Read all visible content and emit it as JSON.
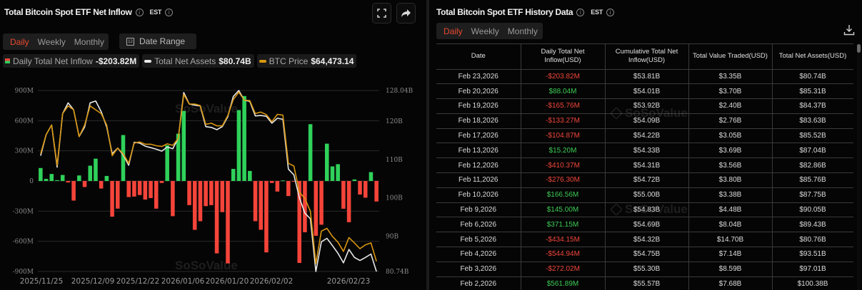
{
  "left_panel": {
    "title": "Total Bitcoin Spot ETF Net Inflow",
    "timezone": "EST",
    "period_tabs": [
      {
        "label": "Daily",
        "active": true
      },
      {
        "label": "Weekly",
        "active": false
      },
      {
        "label": "Monthly",
        "active": false
      }
    ],
    "date_range_label": "Date Range",
    "date_range_icon_day": "12",
    "legend": [
      {
        "label": "Daily Total Net Inflow",
        "value": "-$203.82M",
        "swatch": "inflow"
      },
      {
        "label": "Total Net Assets",
        "value": "$80.74B",
        "swatch": "#e8e8e8"
      },
      {
        "label": "BTC Price",
        "value": "$64,473.14",
        "swatch": "#d9960f"
      }
    ],
    "icons": {
      "fullscreen": "fullscreen-icon",
      "share": "share-icon"
    },
    "watermark": "SoSoValue"
  },
  "right_panel": {
    "title": "Total Bitcoin Spot ETF History Data",
    "timezone": "EST",
    "period_tabs": [
      {
        "label": "Daily",
        "active": true
      },
      {
        "label": "Weekly",
        "active": false
      },
      {
        "label": "Monthly",
        "active": false
      }
    ],
    "download_icon": "download-icon",
    "columns": [
      "Date",
      "Daily Total Net Inflow(USD)",
      "Cumulative Total Net Inflow(USD)",
      "Total Value Traded(USD)",
      "Total Net Assets(USD)"
    ],
    "rows": [
      {
        "date": "Feb 23,2026",
        "daily": "-$203.82M",
        "cumulative": "$53.81B",
        "traded": "$3.35B",
        "assets": "$80.74B"
      },
      {
        "date": "Feb 20,2026",
        "daily": "$88.04M",
        "cumulative": "$54.01B",
        "traded": "$3.70B",
        "assets": "$85.31B"
      },
      {
        "date": "Feb 19,2026",
        "daily": "-$165.76M",
        "cumulative": "$53.92B",
        "traded": "$2.40B",
        "assets": "$84.37B"
      },
      {
        "date": "Feb 18,2026",
        "daily": "-$133.27M",
        "cumulative": "$54.09B",
        "traded": "$2.76B",
        "assets": "$83.63B"
      },
      {
        "date": "Feb 17,2026",
        "daily": "-$104.87M",
        "cumulative": "$54.22B",
        "traded": "$3.05B",
        "assets": "$85.52B"
      },
      {
        "date": "Feb 13,2026",
        "daily": "$15.20M",
        "cumulative": "$54.33B",
        "traded": "$3.69B",
        "assets": "$87.04B"
      },
      {
        "date": "Feb 12,2026",
        "daily": "-$410.37M",
        "cumulative": "$54.31B",
        "traded": "$3.56B",
        "assets": "$82.86B"
      },
      {
        "date": "Feb 11,2026",
        "daily": "-$276.30M",
        "cumulative": "$54.72B",
        "traded": "$3.80B",
        "assets": "$85.76B"
      },
      {
        "date": "Feb 10,2026",
        "daily": "$166.56M",
        "cumulative": "$55.00B",
        "traded": "$3.38B",
        "assets": "$87.75B"
      },
      {
        "date": "Feb 9,2026",
        "daily": "$145.00M",
        "cumulative": "$54.83B",
        "traded": "$4.48B",
        "assets": "$90.05B"
      },
      {
        "date": "Feb 6,2026",
        "daily": "$371.15M",
        "cumulative": "$54.69B",
        "traded": "$8.04B",
        "assets": "$89.43B"
      },
      {
        "date": "Feb 5,2026",
        "daily": "-$434.15M",
        "cumulative": "$54.32B",
        "traded": "$14.70B",
        "assets": "$80.76B"
      },
      {
        "date": "Feb 4,2026",
        "daily": "-$544.94M",
        "cumulative": "$54.75B",
        "traded": "$7.14B",
        "assets": "$93.51B"
      },
      {
        "date": "Feb 3,2026",
        "daily": "-$272.02M",
        "cumulative": "$55.30B",
        "traded": "$8.59B",
        "assets": "$97.01B"
      },
      {
        "date": "Feb 2,2026",
        "daily": "$561.89M",
        "cumulative": "$55.57B",
        "traded": "$7.68B",
        "assets": "$100.38B"
      }
    ],
    "watermark": "SoSoValue"
  },
  "colors": {
    "positive": "#2fd15a",
    "negative": "#f5443a",
    "net_assets_line": "#e8e8e8",
    "btc_price_line": "#d9960f",
    "active_tab": "#e8492f",
    "grid": "#2a2a2a",
    "axis_text": "#8a8a8a"
  },
  "chart_data": {
    "type": "bar",
    "title": "Total Bitcoin Spot ETF Net Inflow",
    "xlabel": "",
    "ylabel": "Daily Total Net Inflow (USD)",
    "ylim": [
      -900,
      900
    ],
    "y_unit": "M",
    "y_ticks": [
      "900M",
      "600M",
      "300M",
      "0",
      "-300M",
      "-600M",
      "-900M"
    ],
    "y2_ticks": [
      "128.04B",
      "120B",
      "110B",
      "100B",
      "90B",
      "80.74B"
    ],
    "y2lim": [
      80.74,
      128.04
    ],
    "x_tick_labels": [
      "2025/11/25",
      "2025/12/09",
      "2025/12/22",
      "2026/01/06",
      "2026/01/20",
      "2026/02/02",
      "2026/02/23"
    ],
    "grid": true,
    "legend_position": "top",
    "series": [
      {
        "name": "Daily Total Net Inflow",
        "type": "bar",
        "values": [
          129,
          21,
          70,
          8,
          60,
          -15,
          -195,
          55,
          -60,
          152,
          222,
          -75,
          50,
          -355,
          -275,
          457,
          -160,
          -155,
          -140,
          -185,
          -170,
          -275,
          -20,
          355,
          -350,
          470,
          697,
          -240,
          -486,
          -400,
          -250,
          -240,
          -720,
          -310,
          -820,
          120,
          705,
          845,
          100,
          -400,
          -485,
          -710,
          -20,
          -105,
          5,
          -150,
          -5,
          -815,
          -510,
          565,
          -545,
          -435,
          371,
          145,
          167,
          -276,
          -410,
          15,
          -135,
          -166,
          88,
          -204
        ]
      },
      {
        "name": "Total Net Assets",
        "type": "line",
        "axis": "right",
        "unit": "B",
        "values": [
          111,
          116.5,
          119,
          108,
          122,
          124.8,
          123,
          116,
          118.5,
          124.8,
          125.3,
          122.5,
          118.5,
          111.5,
          113,
          111.2,
          108.5,
          114.5,
          114.3,
          113.5,
          113.1,
          112.7,
          112.2,
          113.3,
          112.8,
          115.5,
          127.5,
          124.5,
          124.2,
          124,
          118.6,
          118.4,
          117.8,
          118.6,
          121.2,
          126.5,
          128.04,
          125.5,
          125.2,
          121.4,
          121.5,
          121.3,
          119.5,
          120.8,
          120.5,
          107.5,
          106,
          100,
          96,
          94.5,
          80.74,
          88.5,
          89.4,
          87.5,
          85.5,
          83,
          86.5,
          84.4,
          83.6,
          84.4,
          85.3,
          80.74
        ]
      },
      {
        "name": "BTC Price",
        "type": "line",
        "axis": "right",
        "values": [
          111.5,
          116.5,
          119,
          108.5,
          122,
          124,
          123,
          116,
          119,
          124,
          123,
          122,
          119,
          111,
          113,
          111.5,
          109,
          114.3,
          114.6,
          114,
          114,
          113.6,
          113.4,
          114.1,
          113.7,
          115.5,
          127,
          124.5,
          124.5,
          124.1,
          119.2,
          119.5,
          118.8,
          118.8,
          121.5,
          125.7,
          127.6,
          125.5,
          125.4,
          122,
          122.4,
          121.7,
          119.9,
          121.8,
          121.6,
          109,
          108.3,
          101.5,
          99.8,
          96.5,
          82.8,
          91.3,
          92,
          89.9,
          88.4,
          86,
          89.6,
          88.2,
          86.7,
          87.7,
          88.2,
          83.4
        ]
      }
    ]
  }
}
